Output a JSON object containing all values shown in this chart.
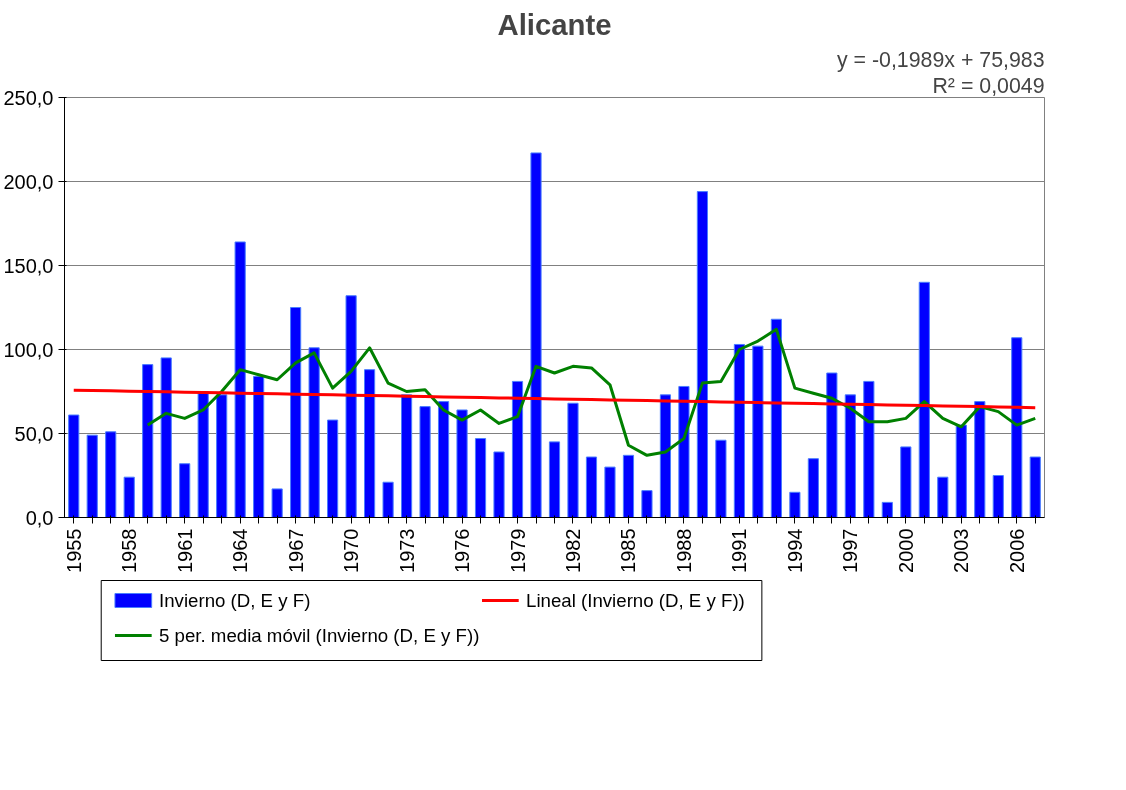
{
  "chart_data": {
    "type": "bar",
    "title": "Alicante",
    "categories": [
      "1955",
      null,
      null,
      "1958",
      null,
      null,
      "1961",
      null,
      null,
      "1964",
      null,
      null,
      "1967",
      null,
      null,
      "1970",
      null,
      null,
      "1973",
      null,
      null,
      "1976",
      null,
      null,
      "1979",
      null,
      null,
      "1982",
      null,
      null,
      "1985",
      null,
      null,
      "1988",
      null,
      null,
      "1991",
      null,
      null,
      "1994",
      null,
      null,
      "1997",
      null,
      null,
      "2000",
      null,
      null,
      "2003",
      null,
      null,
      "2006",
      null
    ],
    "series": [
      {
        "name": "Invierno (D, E y F)",
        "color": "#0000ff",
        "values": [
          61,
          49,
          51,
          24,
          91,
          95,
          32,
          75,
          73,
          164,
          84,
          17,
          125,
          101,
          58,
          132,
          88,
          21,
          73,
          66,
          69,
          64,
          47,
          39,
          81,
          217,
          45,
          68,
          36,
          30,
          37,
          16,
          73,
          78,
          194,
          46,
          103,
          102,
          118,
          15,
          35,
          86,
          73,
          81,
          9,
          42,
          140,
          24,
          55,
          69,
          25,
          107,
          36
        ]
      },
      {
        "name": "5 per. media móvil (Invierno (D, E y F))",
        "type": "line",
        "color": "#008000",
        "values": [
          null,
          null,
          null,
          null,
          55,
          62,
          59,
          64,
          75,
          88,
          85,
          82,
          92,
          98,
          77,
          87,
          101,
          80,
          75,
          76,
          64,
          58,
          64,
          56,
          60,
          90,
          86,
          90,
          89,
          79,
          43,
          37,
          39,
          47,
          80,
          81,
          100,
          105,
          112,
          77,
          74,
          71,
          65,
          57,
          57,
          59,
          69,
          59,
          54,
          66,
          63,
          55,
          59
        ]
      },
      {
        "name": "Lineal (Invierno (D, E y F))",
        "type": "line",
        "color": "#ff0000",
        "values": [
          75.8,
          75.6,
          75.4,
          75.2,
          75.0,
          74.8,
          74.6,
          74.4,
          74.2,
          74.0,
          73.8,
          73.6,
          73.4,
          73.2,
          73.0,
          72.8,
          72.6,
          72.4,
          72.2,
          72.0,
          71.8,
          71.6,
          71.4,
          71.2,
          71.0,
          70.8,
          70.6,
          70.4,
          70.2,
          70.0,
          69.8,
          69.6,
          69.4,
          69.2,
          69.0,
          68.8,
          68.6,
          68.4,
          68.2,
          68.0,
          67.8,
          67.6,
          67.4,
          67.2,
          67.0,
          66.8,
          66.6,
          66.4,
          66.2,
          66.0,
          65.8,
          65.6,
          65.4
        ]
      }
    ],
    "ylim": [
      0,
      250
    ],
    "yticks": [
      {
        "value": 0,
        "label": "0,0"
      },
      {
        "value": 50,
        "label": "50,0"
      },
      {
        "value": 100,
        "label": "100,0"
      },
      {
        "value": 150,
        "label": "150,0"
      },
      {
        "value": 200,
        "label": "200,0"
      },
      {
        "value": 250,
        "label": "250,0"
      }
    ],
    "grid": "y",
    "legend": "bottom",
    "annotations": [
      "y = -0,1989x + 75,983",
      "R² = 0,0049"
    ]
  }
}
